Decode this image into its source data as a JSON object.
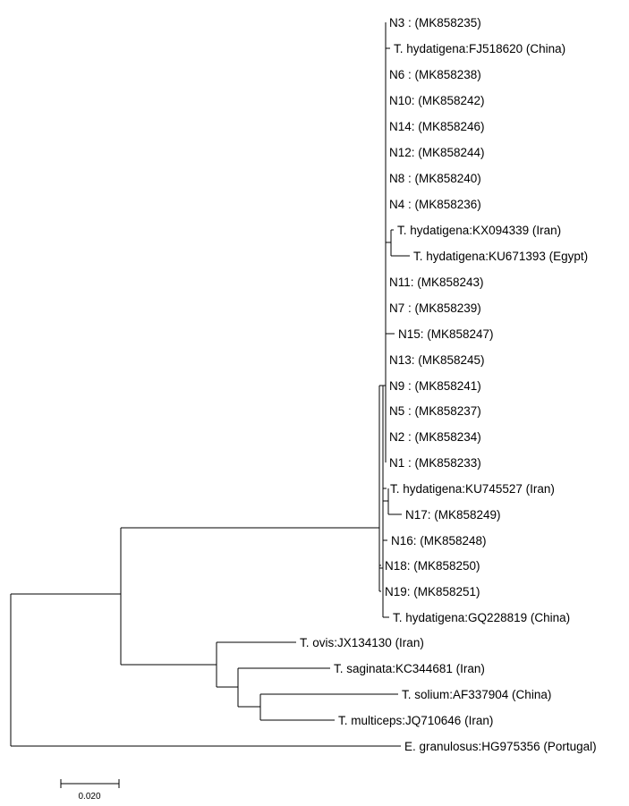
{
  "taxa": [
    {
      "id": "N3",
      "label": "N3 : (MK858235)"
    },
    {
      "id": "FJ518620",
      "label": "T. hydatigena:FJ518620 (China)"
    },
    {
      "id": "N6",
      "label": "N6 : (MK858238)"
    },
    {
      "id": "N10",
      "label": "N10: (MK858242)"
    },
    {
      "id": "N14",
      "label": "N14: (MK858246)"
    },
    {
      "id": "N12",
      "label": "N12: (MK858244)"
    },
    {
      "id": "N8",
      "label": "N8 : (MK858240)"
    },
    {
      "id": "N4",
      "label": "N4 : (MK858236)"
    },
    {
      "id": "KX094339",
      "label": "T. hydatigena:KX094339 (Iran)"
    },
    {
      "id": "KU671393",
      "label": "T. hydatigena:KU671393 (Egypt)"
    },
    {
      "id": "N11",
      "label": "N11: (MK858243)"
    },
    {
      "id": "N7",
      "label": "N7 : (MK858239)"
    },
    {
      "id": "N15",
      "label": "N15: (MK858247)"
    },
    {
      "id": "N13",
      "label": "N13: (MK858245)"
    },
    {
      "id": "N9",
      "label": "N9 : (MK858241)"
    },
    {
      "id": "N5",
      "label": "N5 : (MK858237)"
    },
    {
      "id": "N2",
      "label": "N2 : (MK858234)"
    },
    {
      "id": "N1",
      "label": "N1 : (MK858233)"
    },
    {
      "id": "KU745527",
      "label": "T. hydatigena:KU745527 (Iran)"
    },
    {
      "id": "N17",
      "label": "N17: (MK858249)"
    },
    {
      "id": "N16",
      "label": "N16: (MK858248)"
    },
    {
      "id": "N18",
      "label": "N18: (MK858250)"
    },
    {
      "id": "N19",
      "label": "N19: (MK858251)"
    },
    {
      "id": "GQ228819",
      "label": "T. hydatigena:GQ228819 (China)"
    },
    {
      "id": "JX134130",
      "label": "T. ovis:JX134130 (Iran)"
    },
    {
      "id": "KC344681",
      "label": "T. saginata:KC344681 (Iran)"
    },
    {
      "id": "AF337904",
      "label": "T. solium:AF337904 (China)"
    },
    {
      "id": "JQ710646",
      "label": "T. multiceps:JQ710646 (Iran)"
    },
    {
      "id": "HG975356",
      "label": "E. granulosus:HG975356 (Portugal)"
    }
  ],
  "scale_bar": {
    "label": "0.020",
    "value": 0.02
  }
}
